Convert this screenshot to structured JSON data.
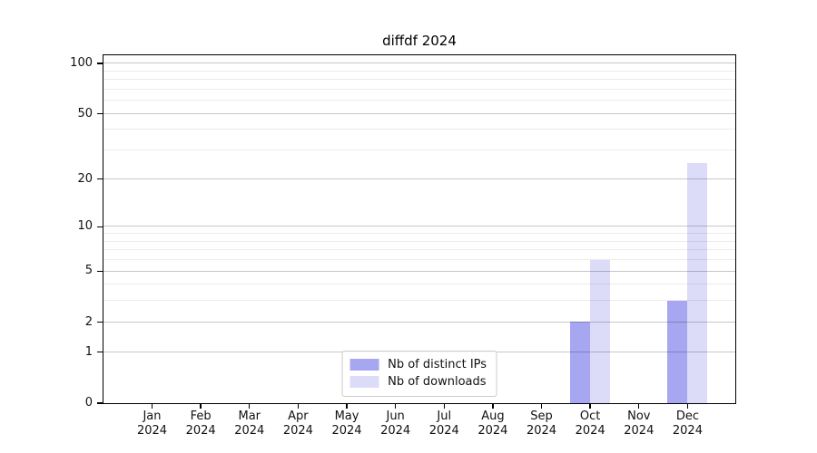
{
  "title": "diffdf 2024",
  "legend": {
    "items": [
      {
        "label": "Nb of distinct IPs",
        "color": "#a6a6f1"
      },
      {
        "label": "Nb of downloads",
        "color": "#dcdcf8"
      }
    ]
  },
  "chart_data": {
    "type": "bar",
    "title": "diffdf 2024",
    "x_months": [
      "Jan",
      "Feb",
      "Mar",
      "Apr",
      "May",
      "Jun",
      "Jul",
      "Aug",
      "Sep",
      "Oct",
      "Nov",
      "Dec"
    ],
    "x_year": "2024",
    "categories": [
      "Jan 2024",
      "Feb 2024",
      "Mar 2024",
      "Apr 2024",
      "May 2024",
      "Jun 2024",
      "Jul 2024",
      "Aug 2024",
      "Sep 2024",
      "Oct 2024",
      "Nov 2024",
      "Dec 2024"
    ],
    "series": [
      {
        "name": "Nb of distinct IPs",
        "color": "#a6a6f1",
        "values": [
          0,
          0,
          0,
          0,
          0,
          0,
          0,
          0,
          0,
          2,
          0,
          3
        ]
      },
      {
        "name": "Nb of downloads",
        "color": "#dcdcf8",
        "values": [
          0,
          0,
          0,
          0,
          0,
          0,
          0,
          0,
          0,
          6,
          0,
          25
        ]
      }
    ],
    "y_scale": "log1p",
    "y_ticks": [
      0,
      1,
      2,
      5,
      10,
      20,
      50,
      100
    ],
    "y_tick_labels": [
      "0",
      "1",
      "2",
      "5",
      "10",
      "20",
      "50",
      "100"
    ],
    "y_minor_ticks": [
      3,
      4,
      6,
      7,
      8,
      9,
      30,
      40,
      60,
      70,
      80,
      90
    ],
    "ylim": [
      0,
      112
    ],
    "grid": "horizontal",
    "legend_position": "lower center",
    "axis_colors": {
      "major_grid": "rgba(0,0,0,0.22)",
      "minor_grid": "rgba(0,0,0,0.08)",
      "spine": "#000000",
      "text": "#111111"
    }
  }
}
